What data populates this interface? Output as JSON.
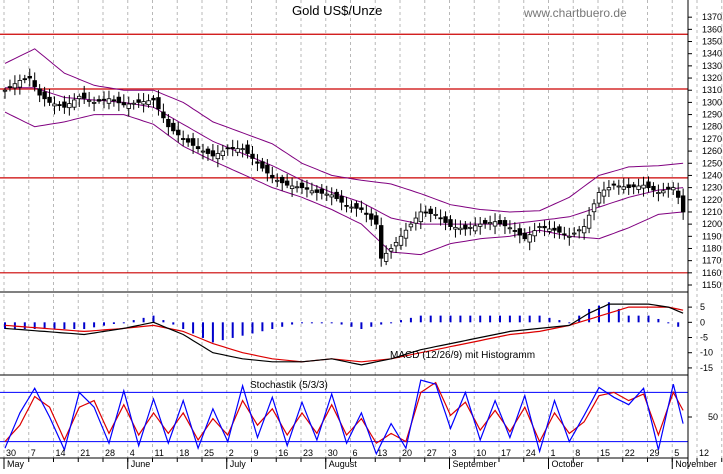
{
  "chart_data": [
    {
      "type": "candlestick",
      "panel": "price",
      "title": "Gold US$/Unze",
      "source": "www.chartbuero.de",
      "ylim": [
        1150,
        1380
      ],
      "y_ticks": [
        1150,
        1160,
        1170,
        1180,
        1190,
        1200,
        1210,
        1220,
        1230,
        1240,
        1250,
        1260,
        1270,
        1280,
        1290,
        1300,
        1310,
        1320,
        1330,
        1340,
        1350,
        1360,
        1370
      ],
      "y_tick_labels": [
        "1150",
        "1160",
        "1170",
        "1180",
        "1190",
        "1200",
        "1210",
        "1220",
        "1230",
        "1240",
        "1250",
        "1260",
        "1270",
        "1280",
        "1290",
        "1300",
        "1310",
        "1320",
        "1330",
        "1340",
        "1350",
        "1360",
        "1370"
      ],
      "horizontal_lines": [
        1356,
        1311,
        1238,
        1160
      ],
      "close_anchors": [
        [
          0,
          1310
        ],
        [
          3,
          1318
        ],
        [
          5,
          1320
        ],
        [
          7,
          1306
        ],
        [
          9,
          1300
        ],
        [
          12,
          1296
        ],
        [
          15,
          1305
        ],
        [
          18,
          1300
        ],
        [
          21,
          1303
        ],
        [
          24,
          1298
        ],
        [
          27,
          1300
        ],
        [
          30,
          1302
        ],
        [
          33,
          1280
        ],
        [
          36,
          1270
        ],
        [
          39,
          1262
        ],
        [
          42,
          1256
        ],
        [
          45,
          1262
        ],
        [
          48,
          1262
        ],
        [
          51,
          1250
        ],
        [
          54,
          1238
        ],
        [
          57,
          1232
        ],
        [
          60,
          1230
        ],
        [
          63,
          1226
        ],
        [
          66,
          1224
        ],
        [
          69,
          1215
        ],
        [
          72,
          1212
        ],
        [
          75,
          1200
        ],
        [
          76,
          1172
        ],
        [
          78,
          1180
        ],
        [
          81,
          1195
        ],
        [
          84,
          1210
        ],
        [
          87,
          1208
        ],
        [
          90,
          1198
        ],
        [
          93,
          1196
        ],
        [
          96,
          1200
        ],
        [
          99,
          1202
        ],
        [
          102,
          1197
        ],
        [
          105,
          1188
        ],
        [
          108,
          1198
        ],
        [
          111,
          1195
        ],
        [
          114,
          1190
        ],
        [
          117,
          1198
        ],
        [
          120,
          1226
        ],
        [
          123,
          1232
        ],
        [
          126,
          1230
        ],
        [
          129,
          1232
        ],
        [
          132,
          1226
        ],
        [
          135,
          1230
        ],
        [
          136,
          1222
        ],
        [
          137,
          1210
        ]
      ],
      "bollinger_mid_anchors": [
        [
          0,
          1312
        ],
        [
          6,
          1312
        ],
        [
          12,
          1304
        ],
        [
          18,
          1302
        ],
        [
          24,
          1300
        ],
        [
          30,
          1296
        ],
        [
          36,
          1282
        ],
        [
          42,
          1268
        ],
        [
          48,
          1258
        ],
        [
          54,
          1248
        ],
        [
          60,
          1236
        ],
        [
          66,
          1226
        ],
        [
          72,
          1218
        ],
        [
          78,
          1205
        ],
        [
          84,
          1200
        ],
        [
          90,
          1200
        ],
        [
          96,
          1200
        ],
        [
          102,
          1200
        ],
        [
          108,
          1203
        ],
        [
          114,
          1206
        ],
        [
          120,
          1214
        ],
        [
          126,
          1222
        ],
        [
          132,
          1228
        ],
        [
          137,
          1230
        ]
      ],
      "bollinger_width_anchors": [
        [
          0,
          20
        ],
        [
          6,
          32
        ],
        [
          12,
          20
        ],
        [
          18,
          12
        ],
        [
          24,
          10
        ],
        [
          30,
          14
        ],
        [
          36,
          18
        ],
        [
          42,
          16
        ],
        [
          48,
          17
        ],
        [
          54,
          18
        ],
        [
          60,
          14
        ],
        [
          66,
          14
        ],
        [
          72,
          18
        ],
        [
          78,
          28
        ],
        [
          84,
          25
        ],
        [
          90,
          16
        ],
        [
          96,
          12
        ],
        [
          102,
          10
        ],
        [
          108,
          8
        ],
        [
          114,
          16
        ],
        [
          120,
          26
        ],
        [
          126,
          25
        ],
        [
          132,
          20
        ],
        [
          137,
          20
        ]
      ]
    },
    {
      "type": "line",
      "panel": "macd",
      "label": "MACD (12/26/9) mit Histogramm",
      "ylim": [
        -17,
        8
      ],
      "y_ticks": [
        5,
        0,
        -5,
        -10,
        -15
      ],
      "y_tick_labels": [
        "5",
        "0",
        "-5",
        "-10",
        "-15"
      ],
      "macd_anchors": [
        [
          0,
          -2
        ],
        [
          8,
          -3
        ],
        [
          16,
          -4
        ],
        [
          24,
          -2
        ],
        [
          30,
          0
        ],
        [
          36,
          -4
        ],
        [
          42,
          -10
        ],
        [
          48,
          -12
        ],
        [
          54,
          -13
        ],
        [
          60,
          -13
        ],
        [
          66,
          -12
        ],
        [
          72,
          -14
        ],
        [
          78,
          -12
        ],
        [
          84,
          -9
        ],
        [
          90,
          -7
        ],
        [
          96,
          -5
        ],
        [
          102,
          -3
        ],
        [
          108,
          -2
        ],
        [
          114,
          -1
        ],
        [
          118,
          3
        ],
        [
          122,
          6
        ],
        [
          126,
          6
        ],
        [
          130,
          6
        ],
        [
          134,
          5
        ],
        [
          137,
          3
        ]
      ],
      "signal_anchors": [
        [
          0,
          -1
        ],
        [
          8,
          -2
        ],
        [
          16,
          -3
        ],
        [
          24,
          -2
        ],
        [
          30,
          -1
        ],
        [
          36,
          -3
        ],
        [
          42,
          -7
        ],
        [
          48,
          -10
        ],
        [
          54,
          -12
        ],
        [
          60,
          -13
        ],
        [
          66,
          -12
        ],
        [
          72,
          -13
        ],
        [
          78,
          -12
        ],
        [
          84,
          -10
        ],
        [
          90,
          -8
        ],
        [
          96,
          -6
        ],
        [
          102,
          -4
        ],
        [
          108,
          -3
        ],
        [
          114,
          -1
        ],
        [
          118,
          1
        ],
        [
          122,
          3
        ],
        [
          126,
          5
        ],
        [
          130,
          5
        ],
        [
          134,
          5
        ],
        [
          137,
          4
        ]
      ]
    },
    {
      "type": "line",
      "panel": "stochastic",
      "label": "Stochastik (5/3/3)",
      "ylim": [
        0,
        100
      ],
      "levels": [
        80,
        20
      ],
      "y_ticks": [
        50
      ],
      "y_tick_labels": [
        "50"
      ],
      "k_anchors": [
        [
          0,
          12
        ],
        [
          3,
          55
        ],
        [
          6,
          85
        ],
        [
          9,
          50
        ],
        [
          12,
          10
        ],
        [
          15,
          80
        ],
        [
          18,
          62
        ],
        [
          21,
          18
        ],
        [
          24,
          82
        ],
        [
          27,
          15
        ],
        [
          30,
          72
        ],
        [
          33,
          18
        ],
        [
          36,
          70
        ],
        [
          39,
          12
        ],
        [
          42,
          60
        ],
        [
          45,
          20
        ],
        [
          48,
          88
        ],
        [
          51,
          25
        ],
        [
          54,
          74
        ],
        [
          57,
          15
        ],
        [
          60,
          68
        ],
        [
          63,
          22
        ],
        [
          66,
          78
        ],
        [
          69,
          18
        ],
        [
          72,
          55
        ],
        [
          75,
          5
        ],
        [
          78,
          42
        ],
        [
          81,
          12
        ],
        [
          84,
          95
        ],
        [
          87,
          90
        ],
        [
          90,
          36
        ],
        [
          93,
          80
        ],
        [
          96,
          22
        ],
        [
          99,
          70
        ],
        [
          102,
          25
        ],
        [
          105,
          76
        ],
        [
          108,
          8
        ],
        [
          111,
          70
        ],
        [
          114,
          20
        ],
        [
          117,
          52
        ],
        [
          120,
          86
        ],
        [
          123,
          74
        ],
        [
          126,
          65
        ],
        [
          129,
          85
        ],
        [
          132,
          10
        ],
        [
          135,
          90
        ],
        [
          137,
          42
        ]
      ],
      "d_anchors": [
        [
          0,
          20
        ],
        [
          3,
          40
        ],
        [
          6,
          75
        ],
        [
          9,
          62
        ],
        [
          12,
          22
        ],
        [
          15,
          62
        ],
        [
          18,
          70
        ],
        [
          21,
          30
        ],
        [
          24,
          65
        ],
        [
          27,
          28
        ],
        [
          30,
          55
        ],
        [
          33,
          30
        ],
        [
          36,
          55
        ],
        [
          39,
          22
        ],
        [
          42,
          48
        ],
        [
          45,
          28
        ],
        [
          48,
          70
        ],
        [
          51,
          40
        ],
        [
          54,
          60
        ],
        [
          57,
          28
        ],
        [
          60,
          55
        ],
        [
          63,
          30
        ],
        [
          66,
          65
        ],
        [
          69,
          28
        ],
        [
          72,
          48
        ],
        [
          75,
          18
        ],
        [
          78,
          30
        ],
        [
          81,
          20
        ],
        [
          84,
          80
        ],
        [
          87,
          92
        ],
        [
          90,
          52
        ],
        [
          93,
          68
        ],
        [
          96,
          34
        ],
        [
          99,
          58
        ],
        [
          102,
          32
        ],
        [
          105,
          62
        ],
        [
          108,
          20
        ],
        [
          111,
          55
        ],
        [
          114,
          30
        ],
        [
          117,
          44
        ],
        [
          120,
          76
        ],
        [
          123,
          80
        ],
        [
          126,
          70
        ],
        [
          129,
          78
        ],
        [
          132,
          28
        ],
        [
          135,
          80
        ],
        [
          137,
          58
        ]
      ]
    }
  ],
  "x_axis": {
    "tick_labels": [
      "30",
      "7",
      "14",
      "21",
      "28",
      "4",
      "11",
      "18",
      "25",
      "2",
      "9",
      "16",
      "23",
      "30",
      "6",
      "13",
      "20",
      "27",
      "3",
      "10",
      "17",
      "24",
      "1",
      "8",
      "15",
      "22",
      "29",
      "5",
      "12",
      "19"
    ],
    "month_labels": [
      "May",
      "June",
      "July",
      "August",
      "September",
      "October",
      "November"
    ]
  },
  "colors": {
    "resistance": "#cc0000",
    "bollinger": "#800080",
    "macd": "#000000",
    "signal": "#dd0000",
    "histogram": "#0000cc",
    "stoch_k": "#0000ff",
    "stoch_d": "#dd0000",
    "stoch_level": "#0000ff",
    "grid": "#b8b8b8"
  }
}
